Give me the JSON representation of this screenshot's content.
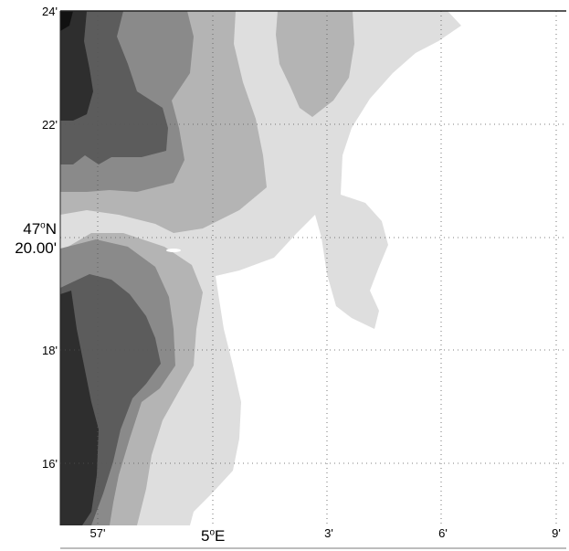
{
  "map": {
    "lat_ticks": [
      "24'",
      "22'",
      "18'",
      "16'"
    ],
    "lat_center": {
      "deg": "47",
      "sup": "o",
      "hemi": "N",
      "minutes": "20.00'"
    },
    "lon_ticks": [
      "57'",
      "3'",
      "6'",
      "9'"
    ],
    "lon_center": {
      "deg": "5",
      "sup": "o",
      "hemi": "E"
    },
    "contour_fills": [
      "#ffffff",
      "#dedede",
      "#b4b4b4",
      "#8a8a8a",
      "#5c5c5c",
      "#2e2e2e"
    ],
    "grid": "dotted"
  }
}
